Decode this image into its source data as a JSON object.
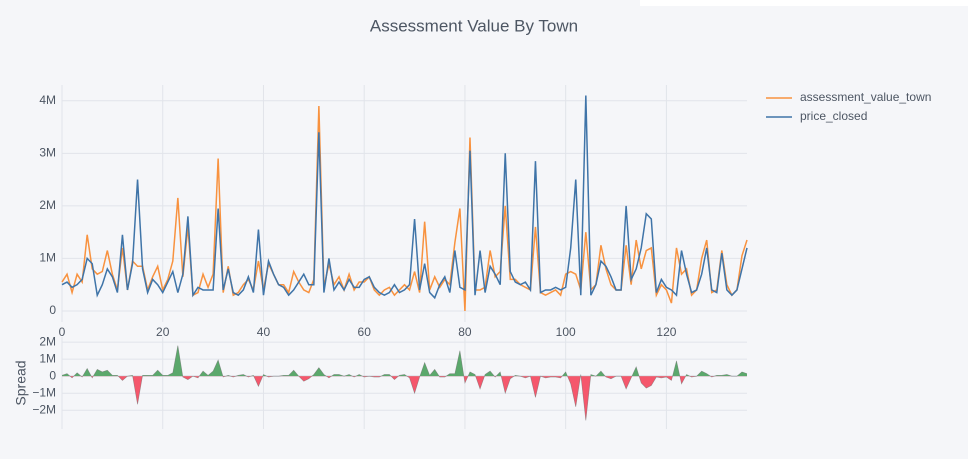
{
  "chart_data": {
    "type": "line",
    "title": "Assessment Value By Town",
    "legend": "top-right",
    "grid": true,
    "xlim": [
      0,
      136
    ],
    "xticks": [
      0,
      20,
      40,
      60,
      80,
      100,
      120
    ],
    "ylim": [
      -210000,
      4300000
    ],
    "yticks": [
      0,
      {
        "value": 1000000,
        "label": "1M"
      },
      {
        "value": 2000000,
        "label": "2M"
      },
      {
        "value": 3000000,
        "label": "3M"
      },
      {
        "value": 4000000,
        "label": "4M"
      }
    ],
    "series": [
      {
        "name": "assessment_value_town",
        "color": "#f8923f",
        "values": [
          550000,
          700000,
          350000,
          700000,
          550000,
          1450000,
          800000,
          700000,
          750000,
          1150000,
          700000,
          400000,
          1200000,
          400000,
          950000,
          850000,
          850000,
          400000,
          650000,
          850000,
          400000,
          600000,
          950000,
          2150000,
          650000,
          1600000,
          300000,
          350000,
          700000,
          450000,
          700000,
          2900000,
          350000,
          850000,
          300000,
          350000,
          500000,
          600000,
          400000,
          950000,
          400000,
          900000,
          700000,
          500000,
          500000,
          350000,
          750000,
          550000,
          400000,
          350000,
          600000,
          3900000,
          450000,
          900000,
          500000,
          650000,
          400000,
          700000,
          400000,
          550000,
          550000,
          650000,
          400000,
          300000,
          400000,
          450000,
          300000,
          400000,
          500000,
          400000,
          750000,
          350000,
          1700000,
          400000,
          650000,
          450000,
          600000,
          500000,
          1300000,
          1950000,
          0,
          3300000,
          400000,
          400000,
          450000,
          1150000,
          650000,
          750000,
          2000000,
          600000,
          600000,
          500000,
          450000,
          400000,
          1600000,
          350000,
          300000,
          350000,
          400000,
          300000,
          700000,
          750000,
          700000,
          400000,
          1500000,
          400000,
          500000,
          1250000,
          800000,
          500000,
          400000,
          400000,
          1250000,
          500000,
          1350000,
          800000,
          1150000,
          1200000,
          300000,
          500000,
          400000,
          150000,
          1200000,
          700000,
          800000,
          300000,
          400000,
          1000000,
          1350000,
          350000,
          400000,
          1150000,
          500000,
          300000,
          400000,
          1050000,
          1350000
        ]
      },
      {
        "name": "price_closed",
        "color": "#3f74a8",
        "values": [
          500000,
          550000,
          450000,
          500000,
          600000,
          1000000,
          900000,
          300000,
          500000,
          800000,
          650000,
          350000,
          1450000,
          400000,
          900000,
          2500000,
          800000,
          350000,
          600000,
          500000,
          350000,
          550000,
          750000,
          350000,
          700000,
          1800000,
          300000,
          450000,
          400000,
          400000,
          400000,
          1950000,
          400000,
          800000,
          350000,
          300000,
          400000,
          650000,
          350000,
          1550000,
          300000,
          950000,
          700000,
          500000,
          450000,
          300000,
          400000,
          550000,
          700000,
          500000,
          500000,
          3400000,
          350000,
          1000000,
          400000,
          550000,
          400000,
          600000,
          450000,
          450000,
          600000,
          650000,
          450000,
          350000,
          300000,
          350000,
          500000,
          350000,
          400000,
          500000,
          1750000,
          400000,
          900000,
          350000,
          250000,
          500000,
          650000,
          350000,
          1150000,
          450000,
          400000,
          3050000,
          300000,
          1150000,
          350000,
          850000,
          700000,
          500000,
          3000000,
          750000,
          550000,
          500000,
          550000,
          400000,
          2850000,
          350000,
          400000,
          400000,
          450000,
          400000,
          450000,
          1200000,
          2500000,
          300000,
          4100000,
          300000,
          500000,
          950000,
          850000,
          650000,
          400000,
          400000,
          2000000,
          600000,
          800000,
          1200000,
          1850000,
          1750000,
          350000,
          600000,
          450000,
          400000,
          300000,
          1150000,
          700000,
          350000,
          400000,
          700000,
          1200000,
          400000,
          350000,
          1100000,
          400000,
          300000,
          400000,
          800000,
          1200000
        ]
      }
    ],
    "spread": {
      "ylabel": "Spread",
      "positive_color": "#5ba86c",
      "negative_color": "#f5576c",
      "ylim": [
        -3100000,
        2300000
      ],
      "yticks": [
        {
          "value": -2000000,
          "label": "−2M"
        },
        {
          "value": -1000000,
          "label": "−1M"
        },
        0,
        {
          "value": 1000000,
          "label": "1M"
        },
        {
          "value": 2000000,
          "label": "2M"
        }
      ],
      "values": [
        50000,
        150000,
        -100000,
        200000,
        -50000,
        450000,
        -100000,
        400000,
        250000,
        350000,
        50000,
        50000,
        -250000,
        0,
        50000,
        -1650000,
        50000,
        50000,
        50000,
        350000,
        50000,
        50000,
        200000,
        1800000,
        -50000,
        -200000,
        0,
        -100000,
        300000,
        50000,
        300000,
        950000,
        -50000,
        50000,
        -50000,
        50000,
        100000,
        -50000,
        50000,
        -600000,
        100000,
        -50000,
        0,
        0,
        50000,
        50000,
        350000,
        0,
        -300000,
        -150000,
        100000,
        500000,
        100000,
        -100000,
        100000,
        100000,
        0,
        100000,
        -50000,
        100000,
        -50000,
        0,
        -50000,
        -50000,
        100000,
        100000,
        -200000,
        50000,
        100000,
        -100000,
        -1000000,
        -50000,
        800000,
        50000,
        400000,
        -50000,
        -50000,
        150000,
        150000,
        1500000,
        -400000,
        250000,
        100000,
        -750000,
        100000,
        300000,
        -50000,
        250000,
        -1000000,
        -150000,
        50000,
        0,
        -100000,
        0,
        -1250000,
        0,
        -100000,
        -50000,
        -50000,
        -100000,
        250000,
        -450000,
        -1800000,
        100000,
        -2600000,
        100000,
        0,
        300000,
        -50000,
        -150000,
        0,
        0,
        -750000,
        -100000,
        550000,
        -400000,
        -700000,
        -550000,
        -50000,
        -100000,
        -50000,
        -250000,
        900000,
        -450000,
        100000,
        -50000,
        0,
        300000,
        150000,
        -50000,
        50000,
        50000,
        100000,
        0,
        0,
        250000,
        150000
      ]
    }
  }
}
